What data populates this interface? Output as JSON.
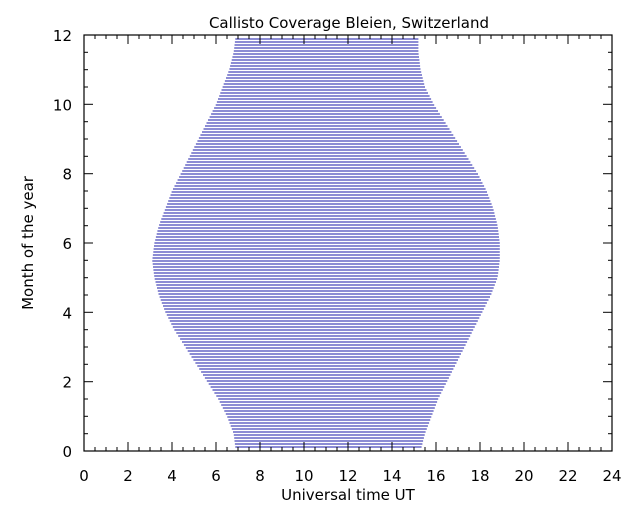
{
  "chart_data": {
    "type": "area",
    "title": "Callisto Coverage Bleien, Switzerland",
    "xlabel": "Universal time UT",
    "ylabel": "Month of the year",
    "xlim": [
      0,
      24
    ],
    "ylim": [
      0,
      12
    ],
    "x_ticks": [
      0,
      2,
      4,
      6,
      8,
      10,
      12,
      14,
      16,
      18,
      20,
      22,
      24
    ],
    "y_ticks": [
      0,
      2,
      4,
      6,
      8,
      10,
      12
    ],
    "grid": false,
    "fill_style": "horizontal-lines",
    "line_color": "#1a1aa8",
    "profile": {
      "month": [
        0,
        0.5,
        1,
        1.5,
        2,
        2.5,
        3,
        3.5,
        4,
        4.5,
        5,
        5.5,
        6,
        6.5,
        7,
        7.5,
        8,
        8.5,
        9,
        9.5,
        10,
        10.5,
        11,
        11.5,
        12
      ],
      "start_ut": [
        6.9,
        6.8,
        6.5,
        6.1,
        5.6,
        5.1,
        4.6,
        4.1,
        3.7,
        3.4,
        3.2,
        3.1,
        3.2,
        3.4,
        3.7,
        4.0,
        4.4,
        4.8,
        5.2,
        5.6,
        6.0,
        6.3,
        6.6,
        6.8,
        6.9
      ],
      "end_ut": [
        15.3,
        15.5,
        15.8,
        16.1,
        16.5,
        16.9,
        17.3,
        17.7,
        18.1,
        18.5,
        18.8,
        18.9,
        18.9,
        18.8,
        18.6,
        18.3,
        17.9,
        17.4,
        16.9,
        16.4,
        15.9,
        15.5,
        15.3,
        15.2,
        15.2
      ]
    }
  }
}
